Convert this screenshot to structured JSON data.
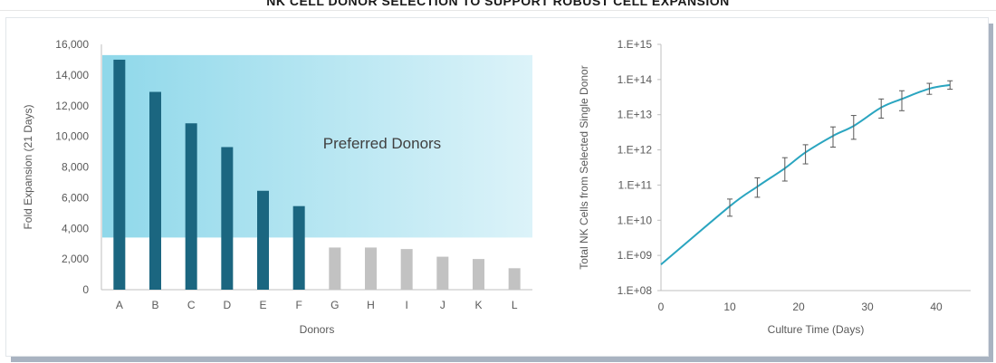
{
  "title": "NK CELL DONOR SELECTION TO SUPPORT ROBUST CELL EXPANSION",
  "colors": {
    "preferred_bar": "#1b6680",
    "other_bar": "#c2c2c2",
    "line": "#2aa5c0",
    "highlight_from": "#8fd8ea",
    "highlight_to": "#dcf3f9"
  },
  "chart_data": [
    {
      "type": "bar",
      "title": "",
      "xlabel": "Donors",
      "ylabel": "Fold Expansion (21 Days)",
      "ylim": [
        0,
        16000
      ],
      "yticks": [
        "0",
        "2,000",
        "4,000",
        "6,000",
        "8,000",
        "10,000",
        "12,000",
        "14,000",
        "16,000"
      ],
      "categories": [
        "A",
        "B",
        "C",
        "D",
        "E",
        "F",
        "G",
        "H",
        "I",
        "J",
        "K",
        "L"
      ],
      "values": [
        15000,
        12900,
        10850,
        9300,
        6450,
        5450,
        2750,
        2750,
        2650,
        2150,
        2000,
        1400
      ],
      "preferred": [
        true,
        true,
        true,
        true,
        true,
        true,
        false,
        false,
        false,
        false,
        false,
        false
      ],
      "highlight": {
        "label": "Preferred Donors",
        "ymin": 3400,
        "ymax": 15300
      },
      "grid": false,
      "legend": "none"
    },
    {
      "type": "line",
      "title": "",
      "xlabel": "Culture Time (Days)",
      "ylabel": "Total NK Cells from Selected Single Donor",
      "xlim": [
        0,
        45
      ],
      "xticks": [
        0,
        10,
        20,
        30,
        40
      ],
      "yscale": "log",
      "ylim": [
        100000000.0,
        1000000000000000.0
      ],
      "yticks": [
        "1.E+08",
        "1.E+09",
        "1.E+10",
        "1.E+11",
        "1.E+12",
        "1.E+13",
        "1.E+14",
        "1.E+15"
      ],
      "series": [
        {
          "x": [
            0,
            10,
            14,
            18,
            21,
            25,
            28,
            32,
            35,
            39,
            42
          ],
          "y": [
            550000000.0,
            25000000000.0,
            90000000000.0,
            300000000000.0,
            850000000000.0,
            2500000000000.0,
            4800000000000.0,
            16000000000000.0,
            28000000000000.0,
            55000000000000.0,
            70000000000000.0
          ],
          "err_low": [
            null,
            13000000000.0,
            45000000000.0,
            130000000000.0,
            400000000000.0,
            1200000000000.0,
            2000000000000.0,
            8000000000000.0,
            13000000000000.0,
            38000000000000.0,
            53000000000000.0
          ],
          "err_high": [
            null,
            40000000000.0,
            160000000000.0,
            600000000000.0,
            1400000000000.0,
            4500000000000.0,
            9500000000000.0,
            28000000000000.0,
            48000000000000.0,
            78000000000000.0,
            92000000000000.0
          ]
        }
      ],
      "grid": false,
      "legend": "none"
    }
  ]
}
